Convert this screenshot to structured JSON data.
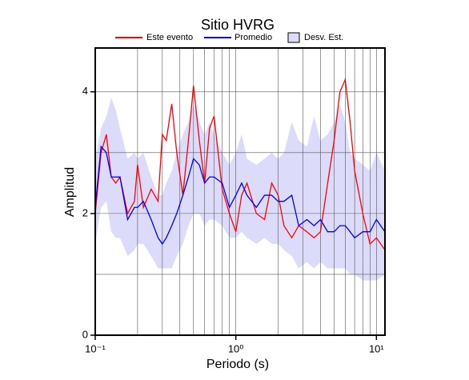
{
  "chart_data": {
    "type": "line",
    "title": "Sitio HVRG",
    "xlabel": "Periodo (s)",
    "ylabel": "Amplitud",
    "xscale": "log",
    "x": [
      0.1,
      0.11,
      0.12,
      0.13,
      0.14,
      0.15,
      0.17,
      0.19,
      0.2,
      0.22,
      0.25,
      0.28,
      0.3,
      0.32,
      0.35,
      0.38,
      0.42,
      0.46,
      0.5,
      0.55,
      0.6,
      0.65,
      0.7,
      0.8,
      0.9,
      1.0,
      1.1,
      1.2,
      1.4,
      1.6,
      1.8,
      2.0,
      2.2,
      2.5,
      2.8,
      3.2,
      3.6,
      4.0,
      4.5,
      5.0,
      5.5,
      6.0,
      6.5,
      7,
      8,
      9,
      10,
      11.5
    ],
    "series": [
      {
        "name": "Este evento",
        "color": "#ff0000",
        "values": [
          2.0,
          3.0,
          3.3,
          2.6,
          2.5,
          2.6,
          2.0,
          2.2,
          2.8,
          2.1,
          2.4,
          2.2,
          3.3,
          3.2,
          3.8,
          3.0,
          2.3,
          3.2,
          4.1,
          3.2,
          2.5,
          3.4,
          3.6,
          2.4,
          2.0,
          1.7,
          2.3,
          2.5,
          2.0,
          1.9,
          2.5,
          2.3,
          1.8,
          1.6,
          1.8,
          1.7,
          1.6,
          1.7,
          2.5,
          3.2,
          4.0,
          4.2,
          3.5,
          2.7,
          2.0,
          1.5,
          1.6,
          1.4
        ]
      },
      {
        "name": "Promedio",
        "color": "#0000ff",
        "values": [
          2.1,
          3.1,
          3.0,
          2.6,
          2.6,
          2.6,
          1.9,
          2.1,
          2.1,
          2.2,
          1.9,
          1.6,
          1.5,
          1.6,
          1.8,
          2.0,
          2.3,
          2.6,
          2.9,
          2.8,
          2.5,
          2.6,
          2.6,
          2.5,
          2.1,
          2.3,
          2.5,
          2.3,
          2.1,
          2.3,
          2.3,
          2.2,
          2.2,
          2.3,
          1.8,
          1.9,
          1.8,
          1.9,
          1.7,
          1.7,
          1.8,
          1.8,
          1.7,
          1.6,
          1.7,
          1.7,
          1.9,
          1.7
        ]
      },
      {
        "name": "Desv. Est.",
        "type": "band",
        "color": "#dcdcfa",
        "upper": [
          2.9,
          3.4,
          3.6,
          3.9,
          3.7,
          3.4,
          2.9,
          3.0,
          2.9,
          3.0,
          2.6,
          2.3,
          2.3,
          2.5,
          2.7,
          3.0,
          3.3,
          3.5,
          3.8,
          3.5,
          3.3,
          3.5,
          3.3,
          3.0,
          2.8,
          3.0,
          3.3,
          2.9,
          2.8,
          2.9,
          3.0,
          2.9,
          3.0,
          3.5,
          3.2,
          3.1,
          3.6,
          3.2,
          3.3,
          3.5,
          3.8,
          3.5,
          3.0,
          2.9,
          2.8,
          2.7,
          3.0,
          2.7
        ],
        "lower": [
          1.5,
          2.1,
          2.2,
          1.7,
          1.6,
          1.6,
          1.3,
          1.4,
          1.5,
          1.5,
          1.3,
          1.1,
          1.1,
          1.1,
          1.1,
          1.3,
          1.5,
          1.8,
          2.0,
          2.0,
          1.8,
          1.9,
          1.9,
          1.8,
          1.6,
          1.6,
          1.7,
          1.6,
          1.5,
          1.6,
          1.5,
          1.5,
          1.4,
          1.3,
          1.1,
          1.2,
          1.1,
          1.2,
          1.1,
          1.1,
          1.1,
          1.1,
          1.0,
          1.0,
          0.9,
          0.9,
          0.9,
          1.0
        ]
      }
    ],
    "xlim": [
      0.1,
      11.5
    ],
    "ylim": [
      0,
      4.72
    ],
    "xticks": [
      {
        "value": 0.1,
        "label": "10⁻¹"
      },
      {
        "value": 1,
        "label": "10⁰"
      },
      {
        "value": 10,
        "label": "10¹"
      }
    ],
    "yticks": [
      0,
      2,
      4
    ],
    "xgrid": [
      0.2,
      0.3,
      0.4,
      0.5,
      0.6,
      0.7,
      0.8,
      0.9,
      1,
      2,
      3,
      4,
      5,
      6,
      7,
      8,
      9,
      10
    ],
    "ygrid": [
      1,
      2,
      3,
      4
    ],
    "legend": "top"
  }
}
